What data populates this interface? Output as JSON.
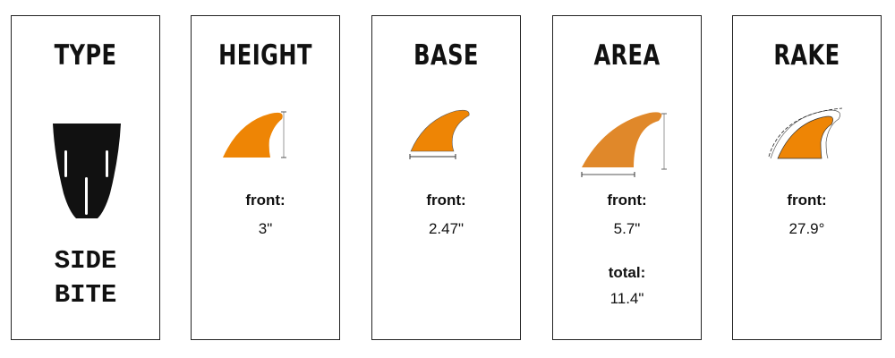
{
  "colors": {
    "fin": "#ee8505",
    "fin_area": "#e0882a",
    "border": "#222222"
  },
  "panels": [
    {
      "title": "TYPE",
      "icon": "surfboard-tail-side-bite-icon",
      "value_lines": [
        "SIDE",
        "BITE"
      ]
    },
    {
      "title": "HEIGHT",
      "icon": "fin-height-icon",
      "label": "front:",
      "value": "3\""
    },
    {
      "title": "BASE",
      "icon": "fin-base-icon",
      "label": "front:",
      "value": "2.47\""
    },
    {
      "title": "AREA",
      "icon": "fin-area-icon",
      "label": "front:",
      "value": "5.7\"",
      "label2": "total:",
      "value2": "11.4\""
    },
    {
      "title": "RAKE",
      "icon": "fin-rake-icon",
      "label": "front:",
      "value": "27.9°"
    }
  ]
}
